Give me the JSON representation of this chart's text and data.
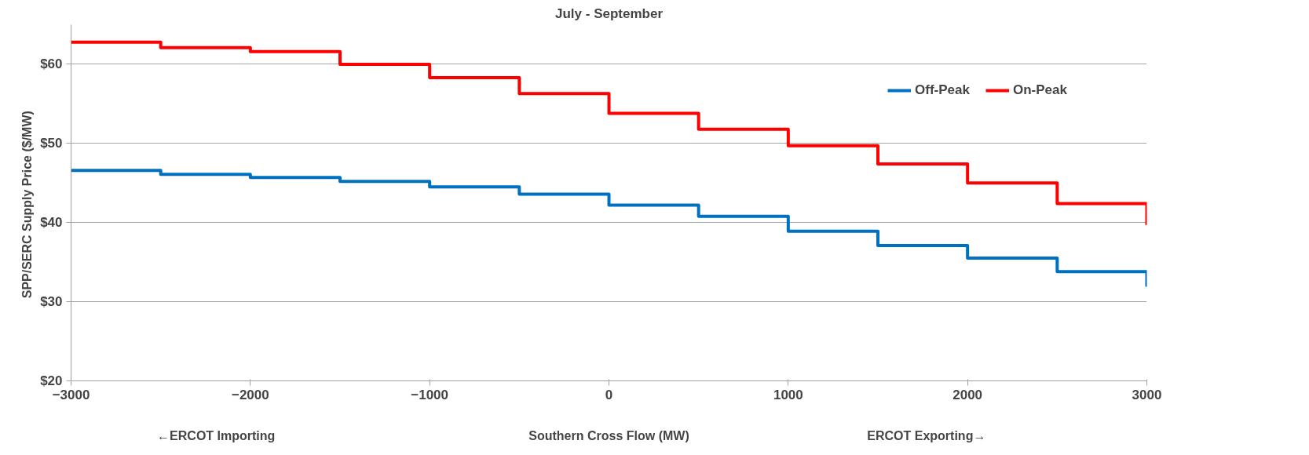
{
  "chart_data": {
    "type": "step",
    "title": "July - September",
    "xlabel": "Southern Cross Flow (MW)",
    "ylabel": "SPP/SERC Supply Price  ($/MW)",
    "annotations": [
      "←ERCOT Importing",
      "ERCOT Exporting→"
    ],
    "x": [
      -3000,
      -2500,
      -2000,
      -1500,
      -1000,
      -500,
      0,
      500,
      1000,
      1500,
      2000,
      2500,
      3000
    ],
    "series": [
      {
        "name": "Off-Peak",
        "color": "#0070c0",
        "values": [
          46.6,
          46.1,
          45.7,
          45.2,
          44.5,
          43.6,
          42.2,
          40.8,
          38.9,
          37.1,
          35.5,
          33.8,
          31.9
        ]
      },
      {
        "name": "On-Peak",
        "color": "#ff0000",
        "values": [
          62.8,
          62.1,
          61.6,
          60.0,
          58.3,
          56.3,
          53.8,
          51.8,
          49.7,
          47.4,
          45.0,
          42.4,
          39.7
        ]
      }
    ],
    "xlim": [
      -3000,
      3000
    ],
    "xticks": [
      -3000,
      -2000,
      -1000,
      0,
      1000,
      2000,
      3000
    ],
    "ylim": [
      20,
      65
    ],
    "yticks": [
      {
        "value": 20,
        "label": "$20"
      },
      {
        "value": 30,
        "label": "$30"
      },
      {
        "value": 40,
        "label": "$40"
      },
      {
        "value": 50,
        "label": "$50"
      },
      {
        "value": 60,
        "label": "$60"
      }
    ],
    "grid": "y",
    "legend": "right",
    "line_style": "solid"
  }
}
